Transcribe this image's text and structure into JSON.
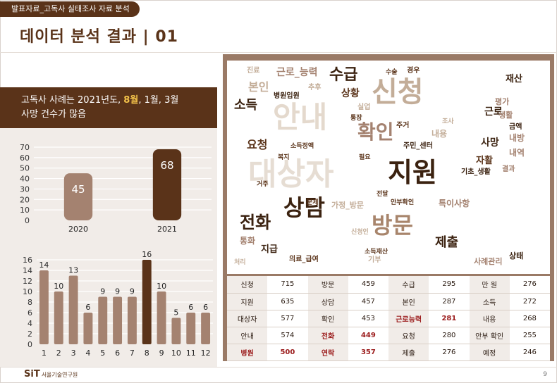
{
  "header": {
    "breadcrumb": "발표자료_고독사 실태조사 자료 분석",
    "title": "데이터 분석 결과 | 01"
  },
  "summary": {
    "prefix": "고독사 사례는 2021년도, ",
    "highlight": "8월",
    "suffix": ", 1월, 3월",
    "line2": "사망 건수가 많음"
  },
  "colors": {
    "brown_dark": "#5a3319",
    "brown_light": "#a48270",
    "accent": "#f3c24a",
    "panel": "#f1ece8"
  },
  "chart_data": [
    {
      "type": "bar",
      "categories": [
        "2020",
        "2021"
      ],
      "values": [
        45,
        68
      ],
      "ylim": [
        0,
        70
      ],
      "yticks": [
        0,
        10,
        20,
        30,
        40,
        50,
        60,
        70
      ],
      "grid": true
    },
    {
      "type": "bar",
      "categories": [
        "1",
        "2",
        "3",
        "4",
        "5",
        "6",
        "7",
        "8",
        "9",
        "10",
        "11",
        "12"
      ],
      "values": [
        14,
        10,
        13,
        6,
        9,
        9,
        9,
        16,
        10,
        5,
        6,
        6
      ],
      "ylim": [
        0,
        16
      ],
      "yticks": [
        0,
        2,
        4,
        6,
        8,
        10,
        12,
        14,
        16
      ],
      "grid": true
    }
  ],
  "word_cloud": [
    {
      "t": "대상자",
      "s": 44,
      "c": "#e6ddd3"
    },
    {
      "t": "신청",
      "s": 40,
      "c": "#c3ad98"
    },
    {
      "t": "안내",
      "s": 42,
      "c": "#e4d9cd"
    },
    {
      "t": "지원",
      "s": 38,
      "c": "#3b2210"
    },
    {
      "t": "상담",
      "s": 32,
      "c": "#3b2210"
    },
    {
      "t": "방문",
      "s": 32,
      "c": "#a8856c"
    },
    {
      "t": "확인",
      "s": 28,
      "c": "#a48270"
    },
    {
      "t": "전화",
      "s": 24,
      "c": "#3b2210"
    },
    {
      "t": "수급",
      "s": 22,
      "c": "#3b2210"
    },
    {
      "t": "제출",
      "s": 18,
      "c": "#3b2210"
    },
    {
      "t": "소득",
      "s": 18,
      "c": "#3b2210"
    },
    {
      "t": "요청",
      "s": 16,
      "c": "#5a3319"
    },
    {
      "t": "본인",
      "s": 16,
      "c": "#c3ad98"
    },
    {
      "t": "근로_능력",
      "s": 14,
      "c": "#a48270"
    },
    {
      "t": "상황",
      "s": 14,
      "c": "#5a3319"
    },
    {
      "t": "주민_센터",
      "s": 10,
      "c": "#3b2210"
    },
    {
      "t": "자활",
      "s": 13,
      "c": "#5a3319"
    },
    {
      "t": "기초_생활",
      "s": 10,
      "c": "#3b2210"
    },
    {
      "t": "근로",
      "s": 14,
      "c": "#3b2210"
    },
    {
      "t": "사망",
      "s": 14,
      "c": "#3b2210"
    },
    {
      "t": "특이사항",
      "s": 12,
      "c": "#a48270"
    },
    {
      "t": "사례관리",
      "s": 11,
      "c": "#a48270"
    },
    {
      "t": "가정_방문",
      "s": 11,
      "c": "#c3ad98"
    },
    {
      "t": "통화",
      "s": 12,
      "c": "#a48270"
    },
    {
      "t": "지급",
      "s": 13,
      "c": "#3b2210"
    },
    {
      "t": "의료_급여",
      "s": 10,
      "c": "#5a3319"
    },
    {
      "t": "병원입원",
      "s": 10,
      "c": "#3b2210"
    },
    {
      "t": "소득정액",
      "s": 9,
      "c": "#5a3319"
    },
    {
      "t": "재산",
      "s": 13,
      "c": "#3b2210"
    },
    {
      "t": "평가",
      "s": 11,
      "c": "#a48270"
    },
    {
      "t": "생활",
      "s": 11,
      "c": "#a48270"
    },
    {
      "t": "금액",
      "s": 10,
      "c": "#3b2210"
    },
    {
      "t": "내방",
      "s": 12,
      "c": "#a48270"
    },
    {
      "t": "내역",
      "s": 12,
      "c": "#a48270"
    },
    {
      "t": "결과",
      "s": 10,
      "c": "#a48270"
    },
    {
      "t": "상태",
      "s": 11,
      "c": "#3b2210"
    },
    {
      "t": "경우",
      "s": 10,
      "c": "#5a3319"
    },
    {
      "t": "진료",
      "s": 10,
      "c": "#c3ad98"
    },
    {
      "t": "추후",
      "s": 10,
      "c": "#c3ad98"
    },
    {
      "t": "실업",
      "s": 10,
      "c": "#c3ad98"
    },
    {
      "t": "통장",
      "s": 9,
      "c": "#5a3319"
    },
    {
      "t": "주거",
      "s": 10,
      "c": "#5a3319"
    },
    {
      "t": "내용",
      "s": 12,
      "c": "#c3ad98"
    },
    {
      "t": "복지",
      "s": 9,
      "c": "#5a3319"
    },
    {
      "t": "필요",
      "s": 9,
      "c": "#5a3319"
    },
    {
      "t": "거주",
      "s": 9,
      "c": "#5a3319"
    },
    {
      "t": "문제",
      "s": 9,
      "c": "#5a3319"
    },
    {
      "t": "전달",
      "s": 9,
      "c": "#5a3319"
    },
    {
      "t": "안부확인",
      "s": 9,
      "c": "#5a3319"
    },
    {
      "t": "신청인",
      "s": 9,
      "c": "#c3ad98"
    },
    {
      "t": "소득재산",
      "s": 9,
      "c": "#5a3319"
    },
    {
      "t": "기부",
      "s": 10,
      "c": "#c3ad98"
    },
    {
      "t": "처리",
      "s": 9,
      "c": "#c3ad98"
    },
    {
      "t": "수술",
      "s": 9,
      "c": "#5a3319"
    },
    {
      "t": "조사",
      "s": 9,
      "c": "#c3ad98"
    }
  ],
  "freq_table": [
    [
      {
        "w": "신청",
        "c": "715"
      },
      {
        "w": "방문",
        "c": "459"
      },
      {
        "w": "수급",
        "c": "295"
      },
      {
        "w": "만 원",
        "c": "276"
      }
    ],
    [
      {
        "w": "지원",
        "c": "635"
      },
      {
        "w": "상담",
        "c": "457"
      },
      {
        "w": "본인",
        "c": "287"
      },
      {
        "w": "소득",
        "c": "272"
      }
    ],
    [
      {
        "w": "대상자",
        "c": "577"
      },
      {
        "w": "확인",
        "c": "453"
      },
      {
        "w": "근로능력",
        "c": "281",
        "red": true
      },
      {
        "w": "내용",
        "c": "268"
      }
    ],
    [
      {
        "w": "안내",
        "c": "574"
      },
      {
        "w": "전화",
        "c": "449",
        "red": true
      },
      {
        "w": "요청",
        "c": "280"
      },
      {
        "w": "안부 확인",
        "c": "255"
      }
    ],
    [
      {
        "w": "병원",
        "c": "500",
        "red": true
      },
      {
        "w": "연락",
        "c": "357",
        "red": true
      },
      {
        "w": "제출",
        "c": "276"
      },
      {
        "w": "예정",
        "c": "246"
      }
    ]
  ],
  "footer": {
    "logo": "SiT",
    "org": "서울기술연구원",
    "page": "9"
  }
}
